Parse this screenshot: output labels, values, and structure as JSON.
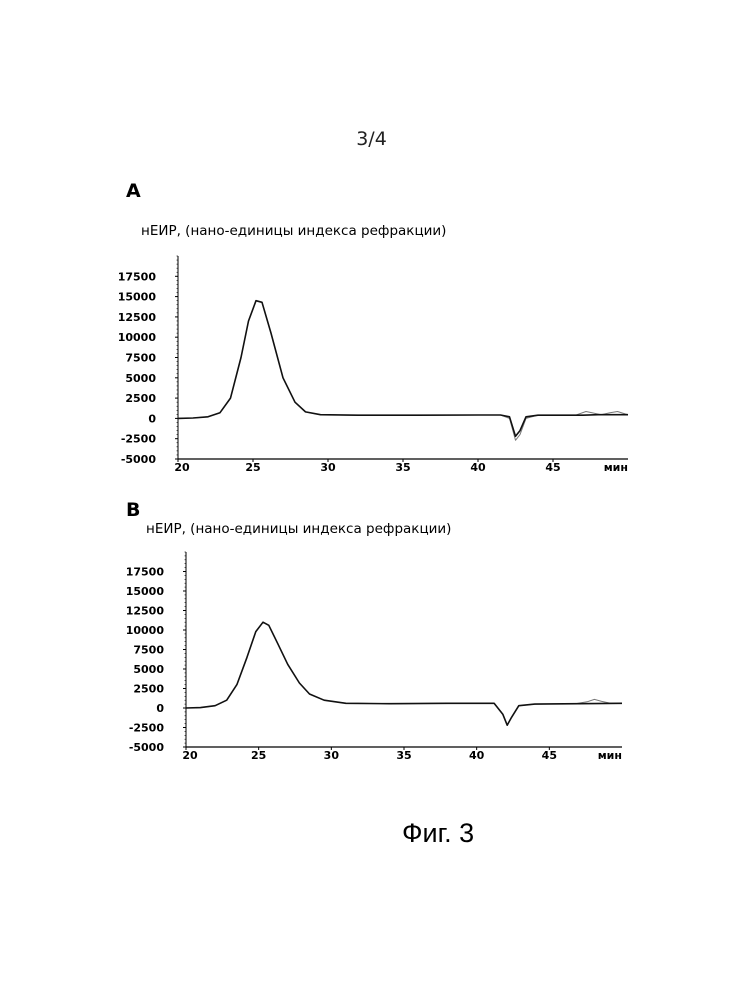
{
  "page_number": "3/4",
  "figure_caption": "Фиг. 3",
  "chart_data": [
    {
      "type": "line",
      "panel_label": "A",
      "ylabel": "нЕИР, (нано-единицы индекса рефракции)",
      "xlabel": "мин",
      "xlim": [
        20,
        50
      ],
      "ylim": [
        -5000,
        20000
      ],
      "x_ticks": [
        20,
        25,
        30,
        35,
        40,
        45
      ],
      "y_ticks": [
        -5000,
        -2500,
        0,
        2500,
        5000,
        7500,
        10000,
        12500,
        15000,
        17500
      ],
      "grid": false,
      "series": [
        {
          "color": "#111111",
          "points": [
            [
              20,
              0
            ],
            [
              21,
              50
            ],
            [
              22,
              200
            ],
            [
              22.8,
              700
            ],
            [
              23.5,
              2500
            ],
            [
              24.2,
              7500
            ],
            [
              24.7,
              12000
            ],
            [
              25.2,
              14500
            ],
            [
              25.6,
              14300
            ],
            [
              26.2,
              10500
            ],
            [
              27,
              5000
            ],
            [
              27.8,
              2000
            ],
            [
              28.5,
              800
            ],
            [
              29.5,
              450
            ],
            [
              32,
              400
            ],
            [
              36,
              400
            ],
            [
              40,
              420
            ],
            [
              41.5,
              420
            ],
            [
              42.1,
              200
            ],
            [
              42.5,
              -2200
            ],
            [
              42.8,
              -1500
            ],
            [
              43.2,
              200
            ],
            [
              44,
              400
            ],
            [
              47,
              400
            ],
            [
              48,
              450
            ],
            [
              49,
              450
            ],
            [
              50,
              450
            ]
          ]
        },
        {
          "color": "#777777",
          "points": [
            [
              20,
              0
            ],
            [
              21,
              50
            ],
            [
              22,
              200
            ],
            [
              22.8,
              700
            ],
            [
              23.5,
              2500
            ],
            [
              24.2,
              7500
            ],
            [
              24.7,
              12000
            ],
            [
              25.2,
              14500
            ],
            [
              25.6,
              14300
            ],
            [
              26.2,
              10500
            ],
            [
              27,
              5000
            ],
            [
              27.8,
              2000
            ],
            [
              28.5,
              800
            ],
            [
              29.5,
              450
            ],
            [
              32,
              400
            ],
            [
              36,
              400
            ],
            [
              40,
              420
            ],
            [
              41.5,
              420
            ],
            [
              42.1,
              0
            ],
            [
              42.5,
              -2700
            ],
            [
              42.8,
              -2000
            ],
            [
              43.2,
              0
            ],
            [
              44,
              400
            ],
            [
              46.5,
              400
            ],
            [
              47.2,
              850
            ],
            [
              47.6,
              700
            ],
            [
              48.2,
              450
            ],
            [
              48.8,
              700
            ],
            [
              49.3,
              850
            ],
            [
              49.8,
              550
            ],
            [
              50,
              450
            ]
          ]
        }
      ]
    },
    {
      "type": "line",
      "panel_label": "B",
      "ylabel": "нЕИР, (нано-единицы индекса рефракции)",
      "xlabel": "мин",
      "xlim": [
        20,
        50
      ],
      "ylim": [
        -5000,
        20000
      ],
      "x_ticks": [
        20,
        25,
        30,
        35,
        40,
        45
      ],
      "y_ticks": [
        -5000,
        -2500,
        0,
        2500,
        5000,
        7500,
        10000,
        12500,
        15000,
        17500
      ],
      "grid": false,
      "series": [
        {
          "color": "#111111",
          "points": [
            [
              20,
              0
            ],
            [
              21,
              50
            ],
            [
              22,
              300
            ],
            [
              22.8,
              1000
            ],
            [
              23.5,
              3000
            ],
            [
              24.2,
              6500
            ],
            [
              24.8,
              9800
            ],
            [
              25.3,
              11000
            ],
            [
              25.7,
              10600
            ],
            [
              26.3,
              8300
            ],
            [
              27,
              5600
            ],
            [
              27.8,
              3200
            ],
            [
              28.5,
              1800
            ],
            [
              29.5,
              1000
            ],
            [
              31,
              600
            ],
            [
              34,
              550
            ],
            [
              38,
              600
            ],
            [
              41.2,
              600
            ],
            [
              41.8,
              -800
            ],
            [
              42.1,
              -2200
            ],
            [
              42.4,
              -1200
            ],
            [
              42.9,
              300
            ],
            [
              44,
              500
            ],
            [
              47,
              550
            ],
            [
              50,
              600
            ]
          ]
        },
        {
          "color": "#777777",
          "points": [
            [
              20,
              0
            ],
            [
              21,
              50
            ],
            [
              22,
              300
            ],
            [
              22.8,
              1000
            ],
            [
              23.5,
              3000
            ],
            [
              24.2,
              6500
            ],
            [
              24.8,
              9800
            ],
            [
              25.3,
              11000
            ],
            [
              25.7,
              10600
            ],
            [
              26.3,
              8300
            ],
            [
              27,
              5600
            ],
            [
              27.8,
              3200
            ],
            [
              28.5,
              1800
            ],
            [
              29.5,
              1000
            ],
            [
              31,
              600
            ],
            [
              34,
              550
            ],
            [
              38,
              600
            ],
            [
              41.2,
              600
            ],
            [
              41.8,
              -800
            ],
            [
              42.1,
              -2200
            ],
            [
              42.4,
              -1200
            ],
            [
              42.9,
              300
            ],
            [
              44,
              500
            ],
            [
              46.8,
              550
            ],
            [
              47.6,
              800
            ],
            [
              48.1,
              1100
            ],
            [
              48.6,
              850
            ],
            [
              49.2,
              600
            ],
            [
              50,
              600
            ]
          ]
        }
      ]
    }
  ]
}
